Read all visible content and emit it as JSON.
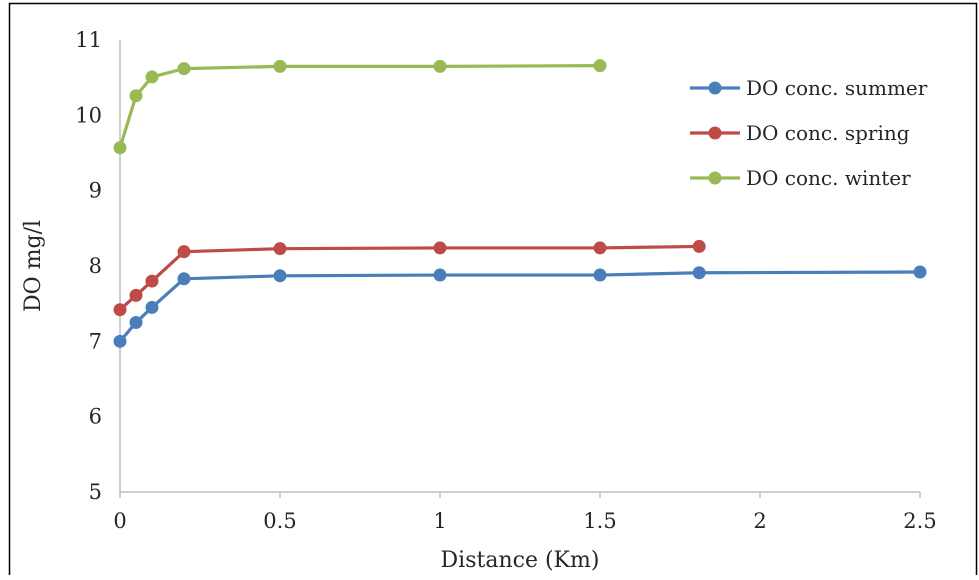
{
  "chart_data": {
    "type": "line",
    "title": "",
    "xlabel": "Distance (Km)",
    "ylabel": "DO mg/l",
    "xlim": [
      0,
      2.5
    ],
    "ylim": [
      5,
      11
    ],
    "xticks": [
      "0",
      "0.5",
      "1",
      "1.5",
      "2",
      "2.5"
    ],
    "yticks": [
      "5",
      "6",
      "7",
      "8",
      "9",
      "10",
      "11"
    ],
    "grid": false,
    "legend_position": "top-right",
    "series": [
      {
        "name": "DO conc. summer",
        "color": "#4a7ebb",
        "points": [
          [
            0,
            7.0
          ],
          [
            0.05,
            7.25
          ],
          [
            0.1,
            7.45
          ],
          [
            0.2,
            7.83
          ],
          [
            0.5,
            7.87
          ],
          [
            1,
            7.88
          ],
          [
            1.5,
            7.88
          ],
          [
            1.81,
            7.91
          ],
          [
            2.5,
            7.92
          ]
        ]
      },
      {
        "name": "DO conc. spring",
        "color": "#be4b48",
        "points": [
          [
            0,
            7.42
          ],
          [
            0.05,
            7.61
          ],
          [
            0.1,
            7.8
          ],
          [
            0.2,
            8.19
          ],
          [
            0.5,
            8.23
          ],
          [
            1,
            8.24
          ],
          [
            1.5,
            8.24
          ],
          [
            1.81,
            8.26
          ]
        ]
      },
      {
        "name": "DO conc. winter",
        "color": "#98b954",
        "points": [
          [
            0,
            9.57
          ],
          [
            0.05,
            10.26
          ],
          [
            0.1,
            10.51
          ],
          [
            0.2,
            10.62
          ],
          [
            0.5,
            10.65
          ],
          [
            1,
            10.65
          ],
          [
            1.5,
            10.66
          ]
        ]
      }
    ]
  }
}
